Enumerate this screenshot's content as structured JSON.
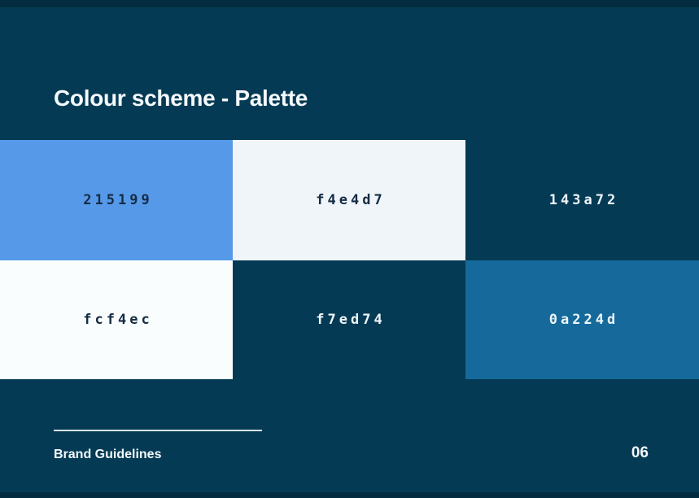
{
  "page": {
    "background_color": "#053a54",
    "edge_shade_color": "#032c40"
  },
  "slide": {
    "title": "Colour scheme - Palette",
    "title_color": "#f4f9fc"
  },
  "palette": {
    "swatches": [
      {
        "label": "215199",
        "fill": "#5599e8",
        "label_style": "dark"
      },
      {
        "label": "f4e4d7",
        "fill": "#f0f5f9",
        "label_style": "dark"
      },
      {
        "label": "143a72",
        "fill": "transparent",
        "label_style": "light"
      },
      {
        "label": "fcf4ec",
        "fill": "#fafdfe",
        "label_style": "dark"
      },
      {
        "label": "f7ed74",
        "fill": "transparent",
        "label_style": "light"
      },
      {
        "label": "0a224d",
        "fill": "#156a9b",
        "label_style": "light"
      }
    ],
    "label_dark_color": "#152c44",
    "label_light_color": "#eef5f9"
  },
  "footer": {
    "label": "Brand Guidelines",
    "page_number": "06",
    "text_color": "#f2f8fb",
    "rule_color": "#d8e4ea"
  }
}
